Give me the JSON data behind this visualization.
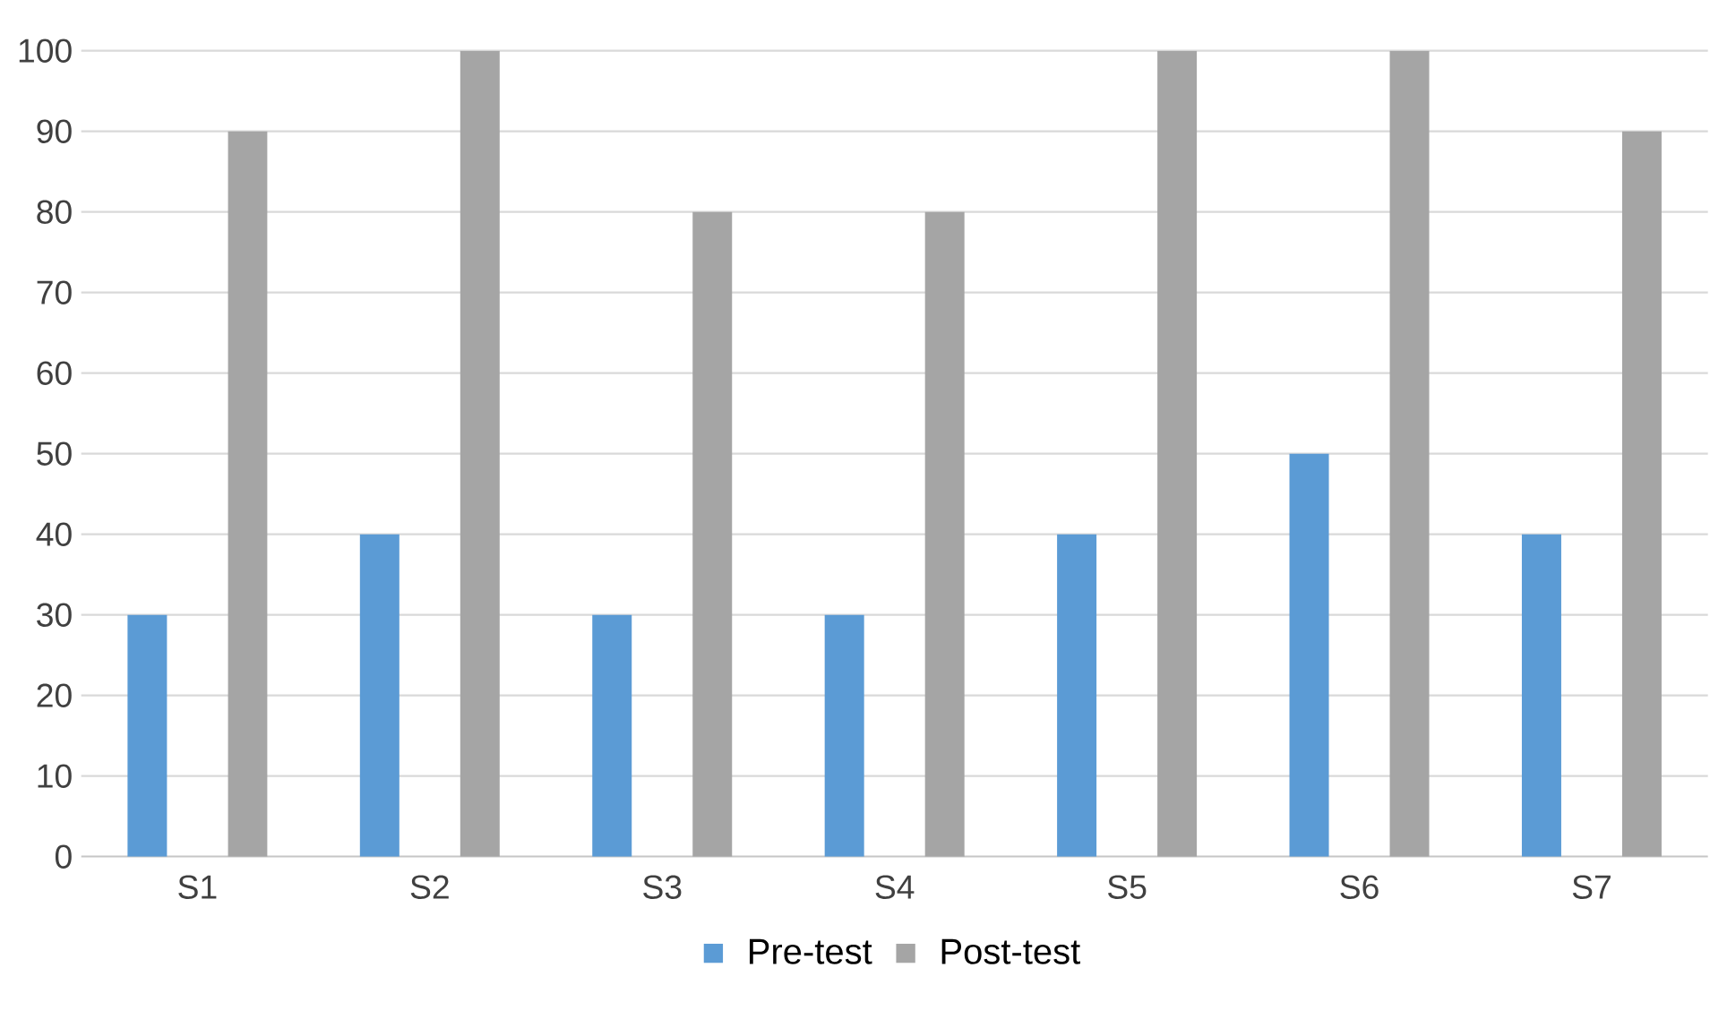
{
  "chart_data": {
    "type": "bar",
    "categories": [
      "S1",
      "S2",
      "S3",
      "S4",
      "S5",
      "S6",
      "S7"
    ],
    "series": [
      {
        "name": "Pre-test",
        "color": "#5b9bd5",
        "values": [
          30,
          40,
          30,
          30,
          40,
          50,
          40
        ]
      },
      {
        "name": "Post-test",
        "color": "#a5a5a5",
        "values": [
          90,
          100,
          80,
          80,
          100,
          100,
          90
        ]
      }
    ],
    "ylim": [
      0,
      100
    ],
    "yticks": [
      0,
      10,
      20,
      30,
      40,
      50,
      60,
      70,
      80,
      90,
      100
    ],
    "grid": "y",
    "legend": "bottom"
  }
}
